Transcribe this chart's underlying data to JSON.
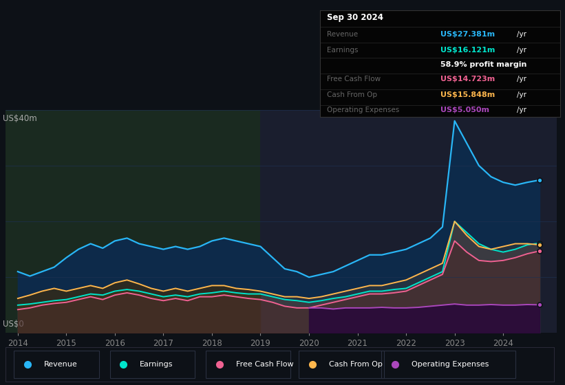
{
  "bg_color": "#0d1117",
  "plot_bg": "#0a1628",
  "ylabel": "US$40m",
  "y0label": "US$0",
  "years": [
    2014.0,
    2014.25,
    2014.5,
    2014.75,
    2015.0,
    2015.25,
    2015.5,
    2015.75,
    2016.0,
    2016.25,
    2016.5,
    2016.75,
    2017.0,
    2017.25,
    2017.5,
    2017.75,
    2018.0,
    2018.25,
    2018.5,
    2018.75,
    2019.0,
    2019.25,
    2019.5,
    2019.75,
    2020.0,
    2020.25,
    2020.5,
    2020.75,
    2021.0,
    2021.25,
    2021.5,
    2021.75,
    2022.0,
    2022.25,
    2022.5,
    2022.75,
    2023.0,
    2023.25,
    2023.5,
    2023.75,
    2024.0,
    2024.25,
    2024.5,
    2024.75
  ],
  "revenue": [
    11.0,
    10.2,
    11.0,
    11.8,
    13.5,
    15.0,
    16.0,
    15.2,
    16.5,
    17.0,
    16.0,
    15.5,
    15.0,
    15.5,
    15.0,
    15.5,
    16.5,
    17.0,
    16.5,
    16.0,
    15.5,
    13.5,
    11.5,
    11.0,
    10.0,
    10.5,
    11.0,
    12.0,
    13.0,
    14.0,
    14.0,
    14.5,
    15.0,
    16.0,
    17.0,
    19.0,
    38.0,
    34.0,
    30.0,
    28.0,
    27.0,
    26.5,
    27.0,
    27.4
  ],
  "earnings": [
    5.0,
    5.2,
    5.5,
    5.8,
    6.0,
    6.5,
    7.0,
    6.8,
    7.5,
    7.8,
    7.5,
    7.0,
    6.5,
    6.8,
    6.5,
    7.0,
    7.2,
    7.5,
    7.2,
    7.0,
    7.0,
    6.5,
    6.0,
    5.8,
    5.5,
    5.8,
    6.2,
    6.5,
    7.0,
    7.5,
    7.5,
    7.8,
    8.0,
    9.0,
    10.0,
    11.0,
    20.0,
    18.0,
    16.0,
    15.0,
    14.5,
    15.0,
    15.8,
    16.1
  ],
  "free_cash_flow": [
    4.2,
    4.5,
    5.0,
    5.3,
    5.5,
    6.0,
    6.5,
    6.0,
    6.8,
    7.2,
    6.8,
    6.2,
    5.8,
    6.2,
    5.8,
    6.5,
    6.5,
    6.8,
    6.5,
    6.2,
    6.0,
    5.5,
    4.8,
    4.5,
    4.5,
    5.0,
    5.5,
    6.0,
    6.5,
    7.0,
    7.0,
    7.2,
    7.5,
    8.5,
    9.5,
    10.5,
    16.5,
    14.5,
    13.0,
    12.8,
    13.0,
    13.5,
    14.2,
    14.7
  ],
  "cash_from_op": [
    6.2,
    6.8,
    7.5,
    8.0,
    7.5,
    8.0,
    8.5,
    8.0,
    9.0,
    9.5,
    8.8,
    8.0,
    7.5,
    8.0,
    7.5,
    8.0,
    8.5,
    8.5,
    8.0,
    7.8,
    7.5,
    7.0,
    6.5,
    6.5,
    6.2,
    6.5,
    7.0,
    7.5,
    8.0,
    8.5,
    8.5,
    9.0,
    9.5,
    10.5,
    11.5,
    12.5,
    20.0,
    17.5,
    15.5,
    15.0,
    15.5,
    16.0,
    16.0,
    15.8
  ],
  "op_expenses": [
    0,
    0,
    0,
    0,
    0,
    0,
    0,
    0,
    0,
    0,
    0,
    0,
    0,
    0,
    0,
    0,
    0,
    0,
    0,
    0,
    0,
    0,
    0,
    0,
    4.5,
    4.5,
    4.3,
    4.5,
    4.5,
    4.5,
    4.6,
    4.5,
    4.5,
    4.6,
    4.8,
    5.0,
    5.2,
    5.0,
    5.0,
    5.1,
    5.0,
    5.0,
    5.1,
    5.05
  ],
  "revenue_color": "#29b6f6",
  "earnings_color": "#00e5cc",
  "fcf_color": "#f06292",
  "cashop_color": "#ffb74d",
  "opex_color": "#ab47bc",
  "revenue_fill": "#0d2a4a",
  "earnings_fill_left": "#2a5a4a",
  "earnings_fill_right": "#3a3a4a",
  "fcf_fill": "#5a3a3a",
  "cashop_fill_left": "#4a3a1a",
  "cashop_fill_right": "#4a3a3a",
  "opex_fill": "#3a1a5a",
  "info_bg": "#050505",
  "info_title": "Sep 30 2024",
  "info_revenue_label": "Revenue",
  "info_revenue_val": "US$27.381m",
  "info_earnings_label": "Earnings",
  "info_earnings_val": "US$16.121m",
  "info_margin": "58.9% profit margin",
  "info_fcf_label": "Free Cash Flow",
  "info_fcf_val": "US$14.723m",
  "info_cashop_label": "Cash From Op",
  "info_cashop_val": "US$15.848m",
  "info_opex_label": "Operating Expenses",
  "info_opex_val": "US$5.050m",
  "legend_items": [
    "Revenue",
    "Earnings",
    "Free Cash Flow",
    "Cash From Op",
    "Operating Expenses"
  ],
  "legend_colors": [
    "#29b6f6",
    "#00e5cc",
    "#f06292",
    "#ffb74d",
    "#ab47bc"
  ],
  "ylim": [
    0,
    40
  ],
  "xlim": [
    2013.75,
    2025.1
  ],
  "xticks": [
    2014,
    2015,
    2016,
    2017,
    2018,
    2019,
    2020,
    2021,
    2022,
    2023,
    2024
  ],
  "grid_color": "#1a2a3a",
  "region1_end": 2019.0,
  "region2_start": 2019.0
}
